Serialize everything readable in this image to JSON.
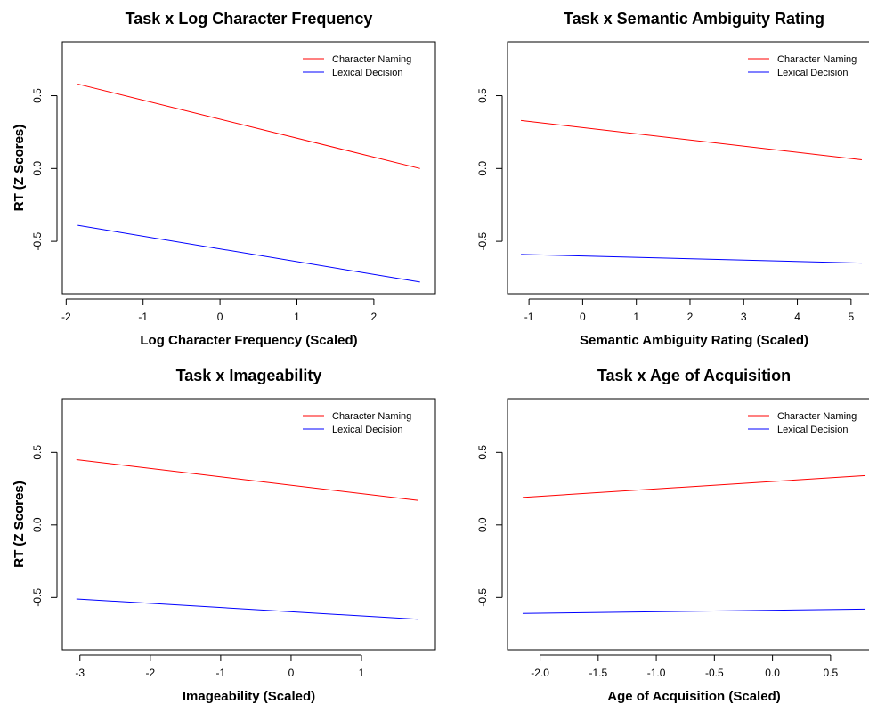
{
  "chart_data": [
    {
      "type": "line",
      "title": "Task x Log Character Frequency",
      "xlabel": "Log Character Frequency (Scaled)",
      "ylabel": "RT (Z Scores)",
      "xlim": [
        -2.05,
        2.8
      ],
      "ylim": [
        -0.86,
        0.87
      ],
      "xticks": [
        -2,
        -1,
        0,
        1,
        2
      ],
      "xtick_labels": [
        "-2",
        "-1",
        "0",
        "1",
        "2"
      ],
      "yticks": [
        -0.5,
        0,
        0.5
      ],
      "ytick_labels": [
        "-0.5",
        "0.0",
        "0.5"
      ],
      "legend_position": "top-right",
      "series": [
        {
          "name": "Character Naming",
          "color": "#ff0000",
          "x": [
            -1.85,
            2.6
          ],
          "y": [
            0.58,
            0.0
          ]
        },
        {
          "name": "Lexical Decision",
          "color": "#0000ff",
          "x": [
            -1.85,
            2.6
          ],
          "y": [
            -0.39,
            -0.78
          ]
        }
      ]
    },
    {
      "type": "line",
      "title": "Task x Semantic Ambiguity Rating",
      "xlabel": "Semantic Ambiguity Rating (Scaled)",
      "ylabel": "RT (Z Scores)",
      "xlim": [
        -1.4,
        5.55
      ],
      "ylim": [
        -0.86,
        0.87
      ],
      "xticks": [
        -1,
        0,
        1,
        2,
        3,
        4,
        5
      ],
      "xtick_labels": [
        "-1",
        "0",
        "1",
        "2",
        "3",
        "4",
        "5"
      ],
      "yticks": [
        -0.5,
        0,
        0.5
      ],
      "ytick_labels": [
        "-0.5",
        "0.0",
        "0.5"
      ],
      "legend_position": "top-right",
      "series": [
        {
          "name": "Character Naming",
          "color": "#ff0000",
          "x": [
            -1.15,
            5.2
          ],
          "y": [
            0.33,
            0.06
          ]
        },
        {
          "name": "Lexical Decision",
          "color": "#0000ff",
          "x": [
            -1.15,
            5.2
          ],
          "y": [
            -0.59,
            -0.65
          ]
        }
      ]
    },
    {
      "type": "line",
      "title": "Task x Imageability",
      "xlabel": "Imageability (Scaled)",
      "ylabel": "RT (Z Scores)",
      "xlim": [
        -3.25,
        2.05
      ],
      "ylim": [
        -0.86,
        0.87
      ],
      "xticks": [
        -3,
        -2,
        -1,
        0,
        1
      ],
      "xtick_labels": [
        "-3",
        "-2",
        "-1",
        "0",
        "1"
      ],
      "yticks": [
        -0.5,
        0,
        0.5
      ],
      "ytick_labels": [
        "-0.5",
        "0.0",
        "0.5"
      ],
      "legend_position": "top-right",
      "series": [
        {
          "name": "Character Naming",
          "color": "#ff0000",
          "x": [
            -3.05,
            1.8
          ],
          "y": [
            0.45,
            0.17
          ]
        },
        {
          "name": "Lexical Decision",
          "color": "#0000ff",
          "x": [
            -3.05,
            1.8
          ],
          "y": [
            -0.51,
            -0.65
          ]
        }
      ]
    },
    {
      "type": "line",
      "title": "Task x Age of Acquisition",
      "xlabel": "Age of Acquisition (Scaled)",
      "ylabel": "RT (Z Scores)",
      "xlim": [
        -2.28,
        0.93
      ],
      "ylim": [
        -0.86,
        0.87
      ],
      "xticks": [
        -2.0,
        -1.5,
        -1.0,
        -0.5,
        0.0,
        0.5
      ],
      "xtick_labels": [
        "-2.0",
        "-1.5",
        "-1.0",
        "-0.5",
        "0.0",
        "0.5"
      ],
      "yticks": [
        -0.5,
        0,
        0.5
      ],
      "ytick_labels": [
        "-0.5",
        "0.0",
        "0.5"
      ],
      "legend_position": "top-right",
      "series": [
        {
          "name": "Character Naming",
          "color": "#ff0000",
          "x": [
            -2.15,
            0.8
          ],
          "y": [
            0.19,
            0.34
          ]
        },
        {
          "name": "Lexical Decision",
          "color": "#0000ff",
          "x": [
            -2.15,
            0.8
          ],
          "y": [
            -0.61,
            -0.58
          ]
        }
      ]
    }
  ]
}
